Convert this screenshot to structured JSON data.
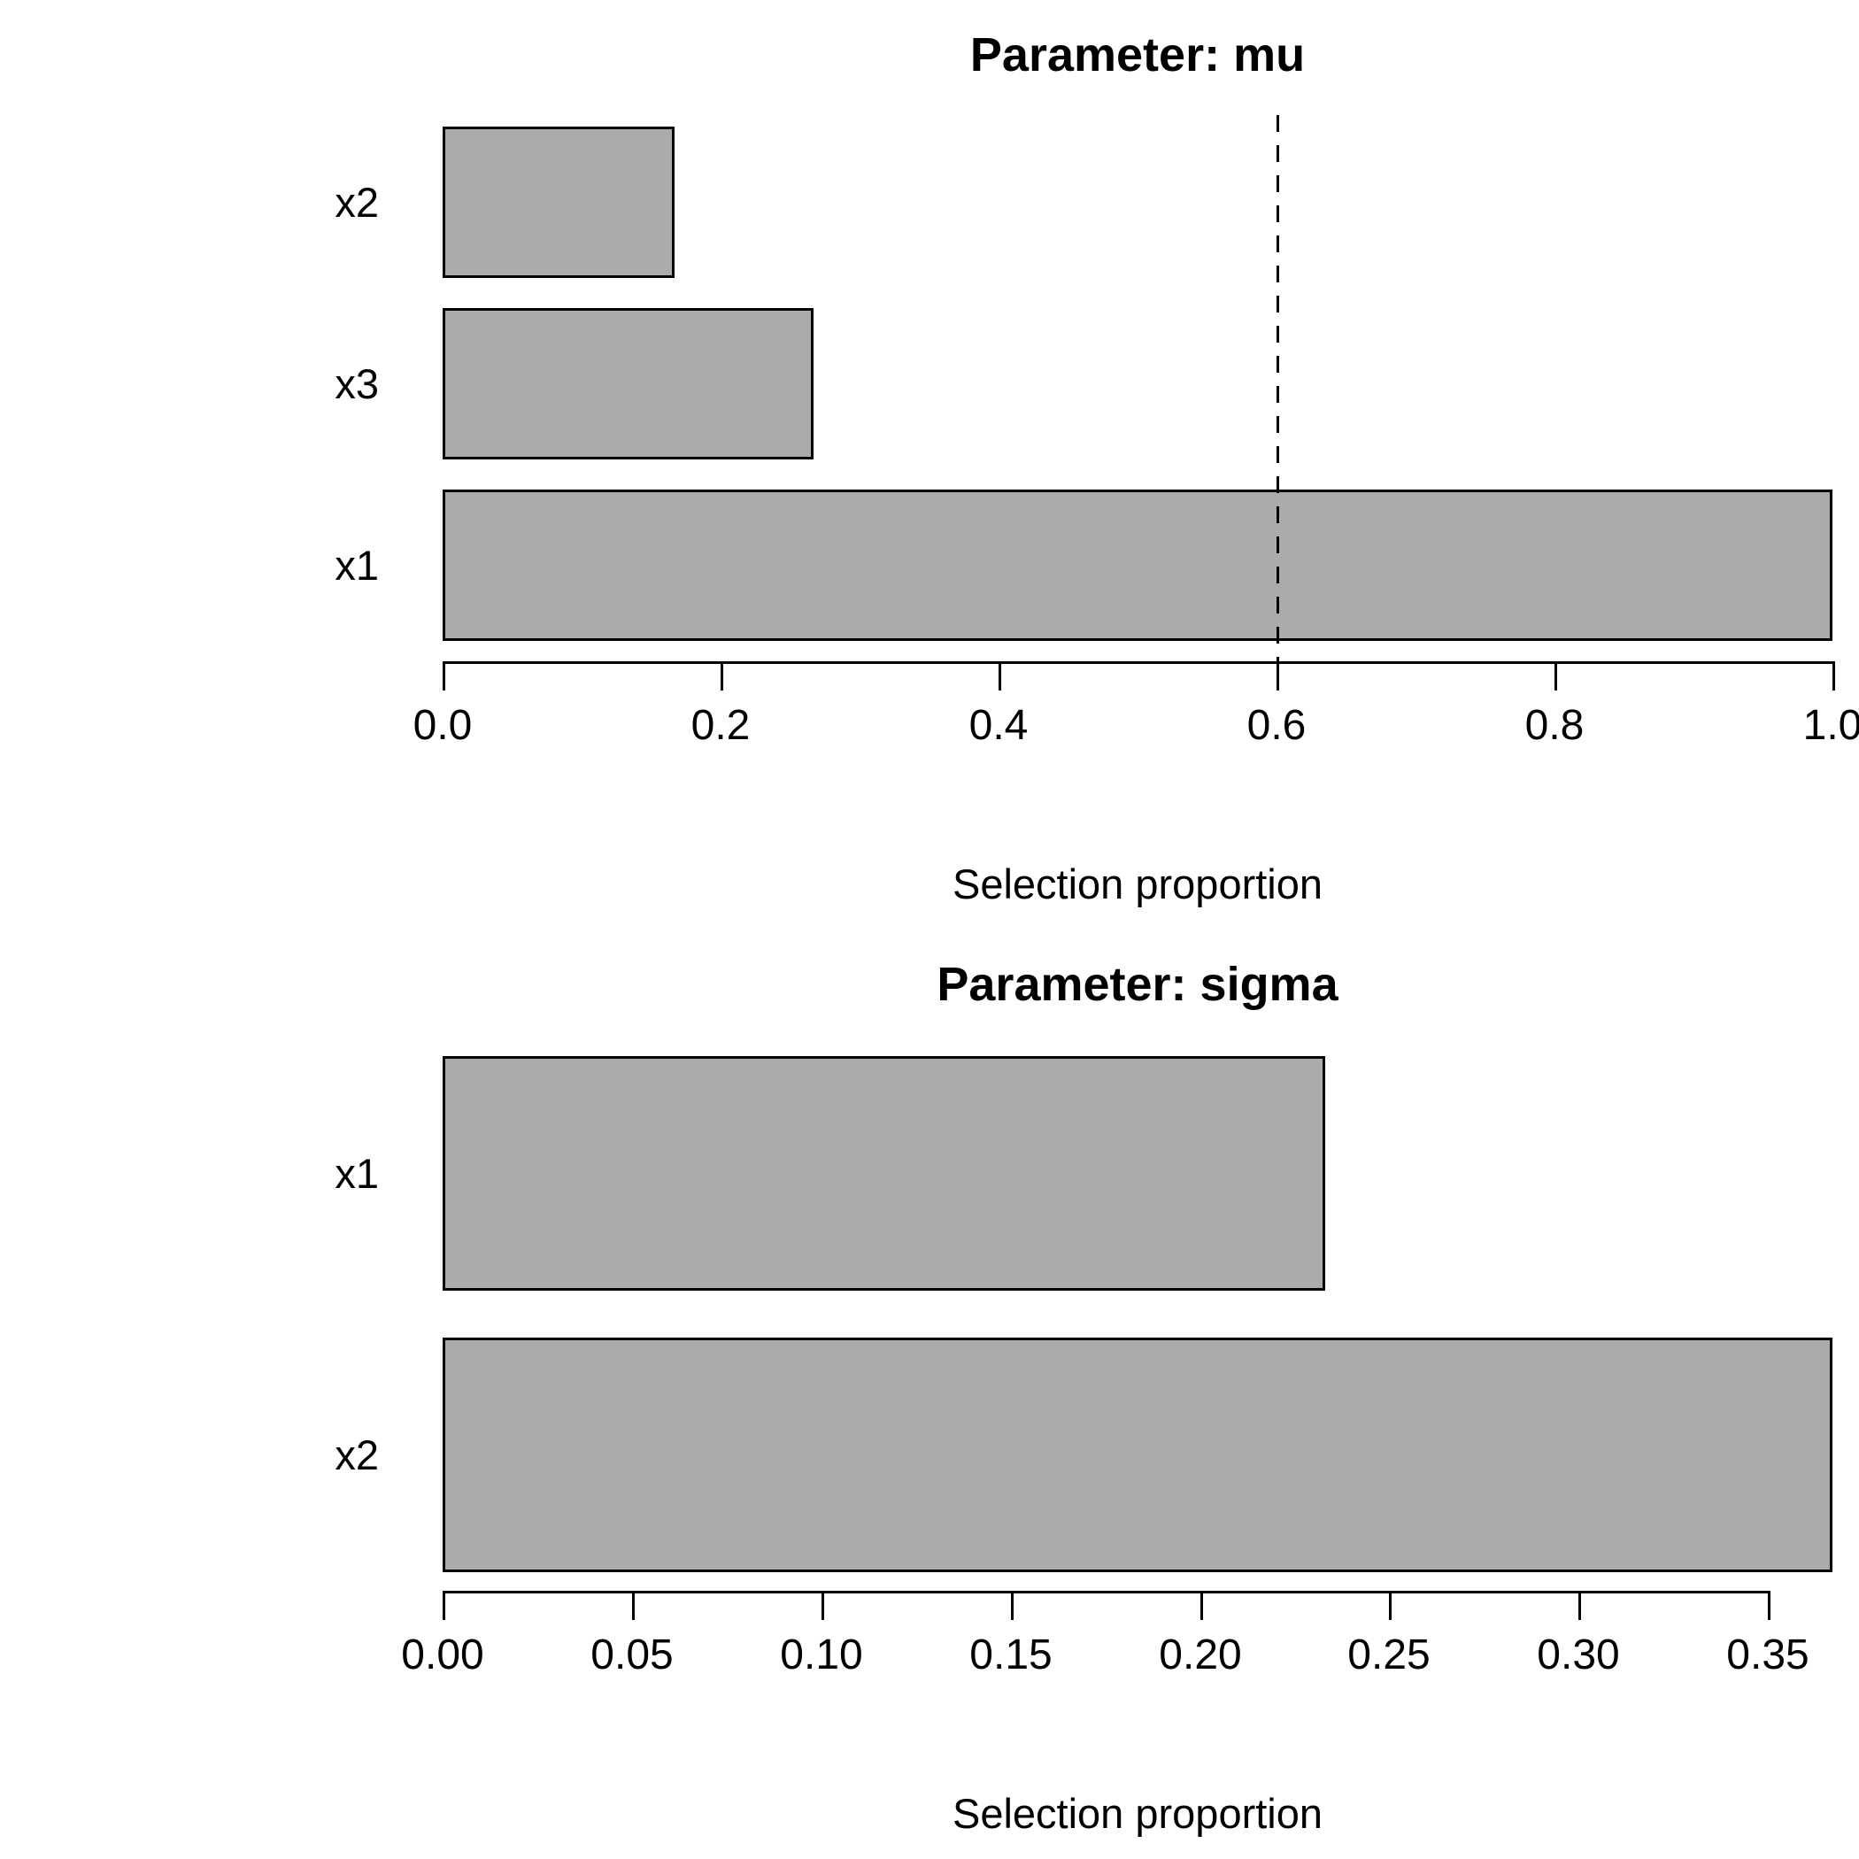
{
  "figure": {
    "background_color": "#ffffff",
    "bar_fill_color": "#ababab",
    "bar_border_color": "#000000",
    "reference_line_color": "#000000"
  },
  "chart_data": [
    {
      "type": "bar",
      "orientation": "horizontal",
      "title": "Parameter: mu",
      "xlabel": "Selection proportion",
      "categories_top_to_bottom": [
        "x2",
        "x3",
        "x1"
      ],
      "values_top_to_bottom": [
        0.167,
        0.267,
        1.0
      ],
      "xlim": [
        0,
        1.0
      ],
      "xticks": [
        0.0,
        0.2,
        0.4,
        0.6,
        0.8,
        1.0
      ],
      "xtick_labels": [
        "0.0",
        "0.2",
        "0.4",
        "0.6",
        "0.8",
        "1.0"
      ],
      "grid": false,
      "legend": false,
      "reference_line": {
        "x": 0.6,
        "style": "dashed"
      }
    },
    {
      "type": "bar",
      "orientation": "horizontal",
      "title": "Parameter: sigma",
      "xlabel": "Selection proportion",
      "categories_top_to_bottom": [
        "x1",
        "x2"
      ],
      "values_top_to_bottom": [
        0.233,
        0.367
      ],
      "xlim": [
        0,
        0.367
      ],
      "xticks": [
        0.0,
        0.05,
        0.1,
        0.15,
        0.2,
        0.25,
        0.3,
        0.35
      ],
      "xtick_labels": [
        "0.00",
        "0.05",
        "0.10",
        "0.15",
        "0.20",
        "0.25",
        "0.30",
        "0.35"
      ],
      "grid": false,
      "legend": false,
      "reference_line": null
    }
  ]
}
